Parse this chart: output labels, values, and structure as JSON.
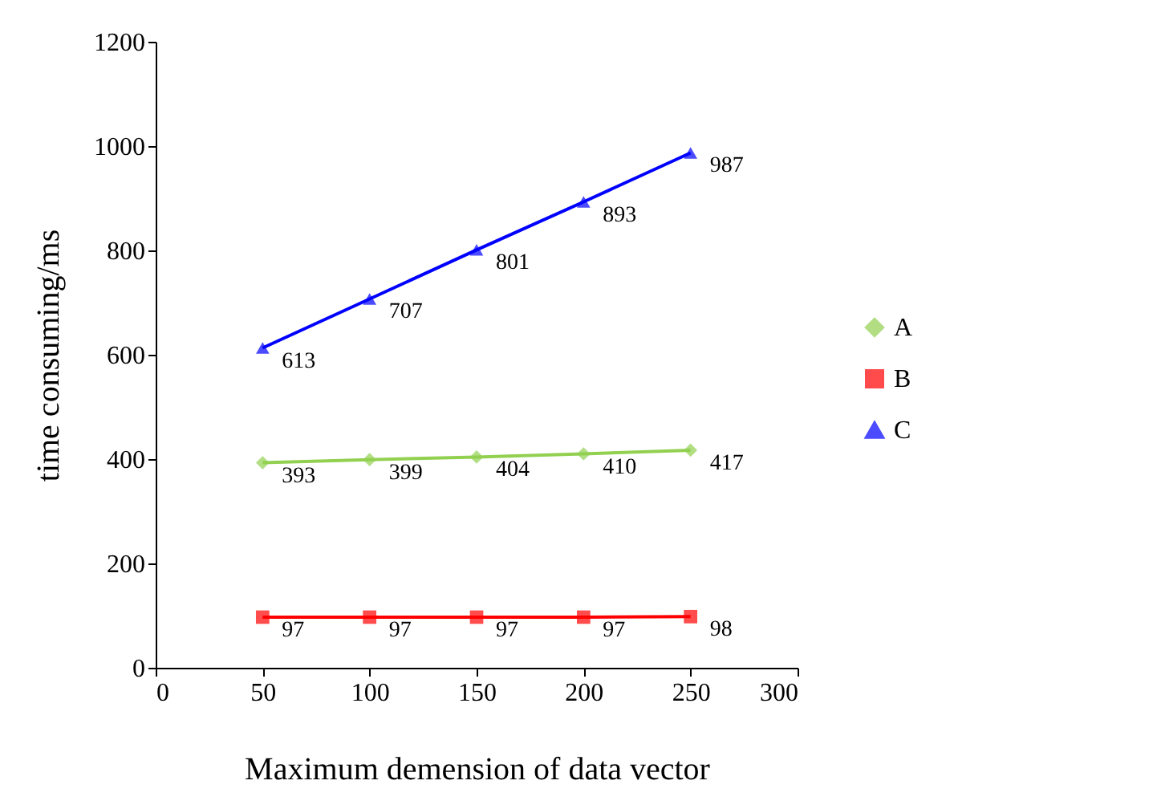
{
  "chart_data": {
    "type": "line",
    "xlabel": "Maximum demension of data vector",
    "ylabel": "time consuming/ms",
    "x": [
      50,
      100,
      150,
      200,
      250
    ],
    "series": [
      {
        "name": "A",
        "color": "#92d050",
        "marker": "diamond",
        "values": [
          393,
          399,
          404,
          410,
          417
        ]
      },
      {
        "name": "B",
        "color": "#ff0000",
        "marker": "square",
        "values": [
          97,
          97,
          97,
          97,
          98
        ]
      },
      {
        "name": "C",
        "color": "#0000ff",
        "marker": "triangle",
        "values": [
          613,
          707,
          801,
          893,
          987
        ]
      }
    ],
    "xlim": [
      0,
      300
    ],
    "xticks": [
      0,
      50,
      100,
      150,
      200,
      250,
      300
    ],
    "ylim": [
      0,
      1200
    ],
    "yticks": [
      0,
      200,
      400,
      600,
      800,
      1000,
      1200
    ],
    "grid": false,
    "legend": "right",
    "data_labels": true
  }
}
